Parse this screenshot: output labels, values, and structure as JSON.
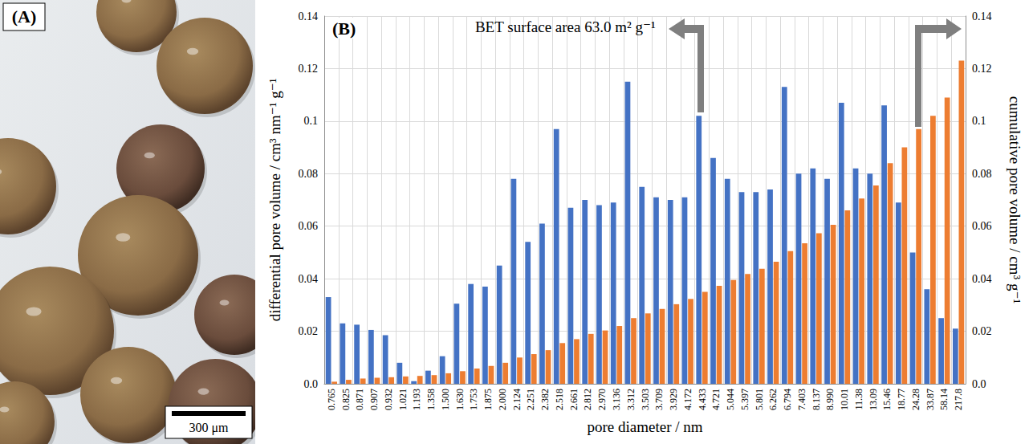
{
  "panel_a": {
    "label": "(A)",
    "scale_bar": "300 μm"
  },
  "chart_data": {
    "type": "bar",
    "panel_label": "(B)",
    "annotations": [
      "BET surface area 63.0 m² g⁻¹"
    ],
    "x_label": "pore diameter / nm",
    "y_label": "differential pore volume / cm³ nm⁻¹ g⁻¹",
    "y2_label": "cumulative pore volume / cm³ g⁻¹",
    "categories": [
      "0.765",
      "0.825",
      "0.871",
      "0.907",
      "0.932",
      "1.021",
      "1.193",
      "1.358",
      "1.500",
      "1.630",
      "1.753",
      "1.875",
      "2.000",
      "2.124",
      "2.251",
      "2.382",
      "2.518",
      "2.661",
      "2.812",
      "2.970",
      "3.136",
      "3.312",
      "3.503",
      "3.709",
      "3.929",
      "4.172",
      "4.433",
      "4.721",
      "5.044",
      "5.397",
      "5.801",
      "6.262",
      "6.794",
      "7.403",
      "8.137",
      "8.990",
      "10.01",
      "11.38",
      "13.09",
      "15.46",
      "18.77",
      "24.28",
      "33.87",
      "58.14",
      "217.8"
    ],
    "series": [
      {
        "color": "#4472c4",
        "axis": "y",
        "values": [
          0.033,
          0.023,
          0.0225,
          0.0205,
          0.0185,
          0.008,
          0.001,
          0.005,
          0.0105,
          0.0305,
          0.038,
          0.037,
          0.045,
          0.078,
          0.054,
          0.061,
          0.097,
          0.067,
          0.07,
          0.068,
          0.069,
          0.115,
          0.075,
          0.071,
          0.07,
          0.071,
          0.102,
          0.086,
          0.078,
          0.073,
          0.073,
          0.074,
          0.113,
          0.08,
          0.082,
          0.078,
          0.107,
          0.082,
          0.08,
          0.106,
          0.069,
          0.05,
          0.036,
          0.025,
          0.021
        ]
      },
      {
        "color": "#ed7d31",
        "axis": "y2",
        "values": [
          0.0008,
          0.0015,
          0.002,
          0.0023,
          0.0025,
          0.0028,
          0.003,
          0.0033,
          0.004,
          0.0048,
          0.0058,
          0.0068,
          0.008,
          0.01,
          0.0113,
          0.0128,
          0.0155,
          0.017,
          0.019,
          0.0203,
          0.022,
          0.025,
          0.0268,
          0.0285,
          0.0303,
          0.0323,
          0.035,
          0.0373,
          0.0395,
          0.0418,
          0.0438,
          0.0465,
          0.0505,
          0.0535,
          0.0573,
          0.0605,
          0.066,
          0.0705,
          0.0755,
          0.084,
          0.09,
          0.097,
          0.102,
          0.109,
          0.123
        ]
      }
    ],
    "ylim": [
      0,
      0.14
    ],
    "yticks": [
      {
        "value": 0,
        "label": "0.0"
      },
      0.02,
      0.04,
      0.06,
      0.08,
      0.1,
      0.12,
      0.14
    ],
    "y2lim": [
      0,
      0.14
    ],
    "y2ticks": [
      {
        "value": 0,
        "label": "0.0"
      },
      0.02,
      0.04,
      0.06,
      0.08,
      0.1,
      0.12,
      0.14
    ],
    "grid": true
  }
}
